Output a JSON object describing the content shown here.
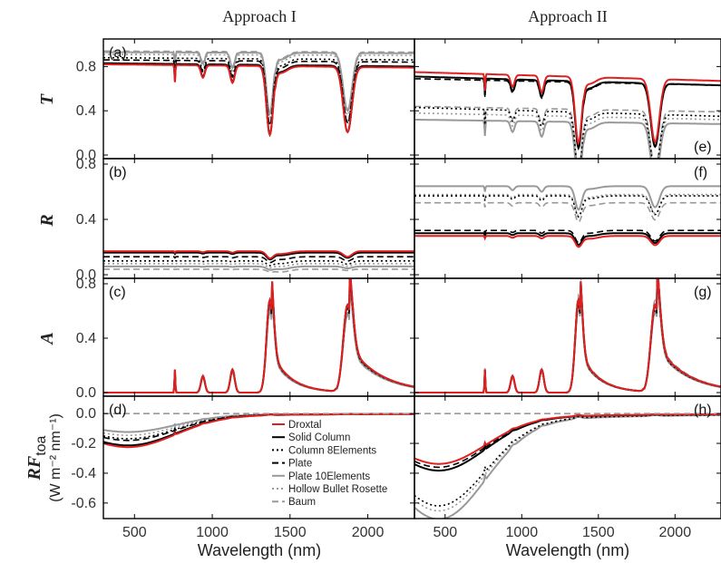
{
  "chart_data": {
    "type": "line",
    "column_titles": [
      "Approach I",
      "Approach II"
    ],
    "xlabel": "Wavelength (nm)",
    "xlim": [
      300,
      2300
    ],
    "xticks": [
      "500",
      "1000",
      "1500",
      "2000"
    ],
    "rows": [
      {
        "ylabel": "T",
        "ylim": [
          0,
          1.0
        ],
        "yticks": [
          "0.0",
          "0.4",
          "0.8"
        ]
      },
      {
        "ylabel": "R",
        "ylim": [
          0,
          0.8
        ],
        "yticks": [
          "0.0",
          "0.4",
          "0.8"
        ]
      },
      {
        "ylabel": "A",
        "ylim": [
          0,
          0.8
        ],
        "yticks": [
          "0.0",
          "0.4",
          "0.8"
        ]
      },
      {
        "ylabel": "RF",
        "ylabel_sub": "toa",
        "ylabel_units": "(W m⁻² nm⁻¹)",
        "ylim": [
          -0.68,
          0.08
        ],
        "yticks": [
          "0.0",
          "-0.2",
          "-0.4",
          "-0.6"
        ]
      }
    ],
    "legend": {
      "position": "inside panel (d), bottom-right",
      "entries": [
        {
          "name": "Droxtal",
          "color": "#e02020",
          "style": "solid"
        },
        {
          "name": "Solid Column",
          "color": "#000000",
          "style": "solid"
        },
        {
          "name": "Column 8Elements",
          "color": "#000000",
          "style": "dotted"
        },
        {
          "name": "Plate",
          "color": "#000000",
          "style": "dashed"
        },
        {
          "name": "Plate 10Elements",
          "color": "#999999",
          "style": "solid"
        },
        {
          "name": "Hollow Bullet Rosette",
          "color": "#999999",
          "style": "dotted"
        },
        {
          "name": "Baum",
          "color": "#999999",
          "style": "dashed"
        }
      ]
    },
    "panels": [
      {
        "label": "(a)",
        "row": 0,
        "col": 0,
        "kind": "T",
        "series": [
          {
            "name": "Droxtal",
            "base": 0.82,
            "bandscale": 0.62,
            "tilt": -0.03,
            "slope": 0
          },
          {
            "name": "Solid Column",
            "base": 0.83,
            "bandscale": 0.63,
            "tilt": -0.03,
            "slope": 0
          },
          {
            "name": "Column 8Elements",
            "base": 0.88,
            "bandscale": 0.6,
            "tilt": -0.02,
            "slope": 0
          },
          {
            "name": "Plate",
            "base": 0.86,
            "bandscale": 0.58,
            "tilt": -0.02,
            "slope": 0
          },
          {
            "name": "Plate 10Elements",
            "base": 0.93,
            "bandscale": 0.55,
            "tilt": -0.01,
            "slope": 0
          },
          {
            "name": "Hollow Bullet Rosette",
            "base": 0.91,
            "bandscale": 0.57,
            "tilt": -0.01,
            "slope": 0
          },
          {
            "name": "Baum",
            "base": 0.94,
            "bandscale": 0.55,
            "tilt": -0.01,
            "slope": 0
          }
        ]
      },
      {
        "label": "(e)",
        "row": 0,
        "col": 1,
        "kind": "T",
        "series": [
          {
            "name": "Droxtal",
            "base": 0.75,
            "bandscale": 0.6,
            "tilt": -0.08,
            "slope": 0
          },
          {
            "name": "Solid Column",
            "base": 0.71,
            "bandscale": 0.6,
            "tilt": -0.08,
            "slope": 0
          },
          {
            "name": "Column 8Elements",
            "base": 0.43,
            "bandscale": 0.55,
            "tilt": -0.08,
            "slope": 0
          },
          {
            "name": "Plate",
            "base": 0.69,
            "bandscale": 0.6,
            "tilt": -0.06,
            "slope": 0
          },
          {
            "name": "Plate 10Elements",
            "base": 0.32,
            "bandscale": 0.55,
            "tilt": -0.04,
            "slope": 0
          },
          {
            "name": "Hollow Bullet Rosette",
            "base": 0.38,
            "bandscale": 0.55,
            "tilt": -0.06,
            "slope": 0
          },
          {
            "name": "Baum",
            "base": 0.44,
            "bandscale": 0.55,
            "tilt": -0.05,
            "slope": 0
          }
        ]
      },
      {
        "label": "(b)",
        "row": 1,
        "col": 0,
        "kind": "R",
        "series": [
          {
            "name": "Droxtal",
            "base": 0.17,
            "bandscale": 0.5,
            "tilt": 0,
            "slope": 0
          },
          {
            "name": "Solid Column",
            "base": 0.16,
            "bandscale": 0.5,
            "tilt": 0,
            "slope": 0
          },
          {
            "name": "Column 8Elements",
            "base": 0.1,
            "bandscale": 0.5,
            "tilt": 0,
            "slope": 0
          },
          {
            "name": "Plate",
            "base": 0.13,
            "bandscale": 0.5,
            "tilt": 0,
            "slope": 0
          },
          {
            "name": "Plate 10Elements",
            "base": 0.06,
            "bandscale": 0.5,
            "tilt": 0,
            "slope": 0
          },
          {
            "name": "Hollow Bullet Rosette",
            "base": 0.08,
            "bandscale": 0.5,
            "tilt": 0,
            "slope": 0
          },
          {
            "name": "Baum",
            "base": 0.04,
            "bandscale": 0.5,
            "tilt": 0,
            "slope": 0
          }
        ]
      },
      {
        "label": "(f)",
        "row": 1,
        "col": 1,
        "kind": "R",
        "series": [
          {
            "name": "Droxtal",
            "base": 0.28,
            "bandscale": 0.4,
            "tilt": 0.02,
            "slope": 0
          },
          {
            "name": "Solid Column",
            "base": 0.3,
            "bandscale": 0.4,
            "tilt": 0.02,
            "slope": 0
          },
          {
            "name": "Column 8Elements",
            "base": 0.57,
            "bandscale": 0.4,
            "tilt": 0.02,
            "slope": 0
          },
          {
            "name": "Plate",
            "base": 0.32,
            "bandscale": 0.4,
            "tilt": 0.02,
            "slope": 0
          },
          {
            "name": "Plate 10Elements",
            "base": 0.64,
            "bandscale": 0.4,
            "tilt": 0.02,
            "slope": 0
          },
          {
            "name": "Hollow Bullet Rosette",
            "base": 0.58,
            "bandscale": 0.4,
            "tilt": 0.02,
            "slope": 0
          },
          {
            "name": "Baum",
            "base": 0.52,
            "bandscale": 0.4,
            "tilt": 0.02,
            "slope": 0
          }
        ]
      },
      {
        "label": "(c)",
        "row": 2,
        "col": 0,
        "kind": "A",
        "series": [
          {
            "name": "Droxtal",
            "base": 0,
            "bandscale": 1.0,
            "tilt": 0,
            "slope": 0
          },
          {
            "name": "Solid Column",
            "base": 0,
            "bandscale": 1.0,
            "tilt": 0,
            "slope": 0
          },
          {
            "name": "Column 8Elements",
            "base": 0,
            "bandscale": 0.95,
            "tilt": 0,
            "slope": 0
          },
          {
            "name": "Plate",
            "base": 0,
            "bandscale": 0.97,
            "tilt": 0,
            "slope": 0
          },
          {
            "name": "Plate 10Elements",
            "base": 0,
            "bandscale": 0.9,
            "tilt": 0,
            "slope": 0
          },
          {
            "name": "Hollow Bullet Rosette",
            "base": 0,
            "bandscale": 0.92,
            "tilt": 0,
            "slope": 0
          },
          {
            "name": "Baum",
            "base": 0,
            "bandscale": 0.88,
            "tilt": 0,
            "slope": 0
          }
        ]
      },
      {
        "label": "(g)",
        "row": 2,
        "col": 1,
        "kind": "A",
        "series": [
          {
            "name": "Droxtal",
            "base": 0,
            "bandscale": 1.0,
            "tilt": 0,
            "slope": 0
          },
          {
            "name": "Solid Column",
            "base": 0,
            "bandscale": 1.0,
            "tilt": 0,
            "slope": 0
          },
          {
            "name": "Column 8Elements",
            "base": 0,
            "bandscale": 0.95,
            "tilt": 0,
            "slope": 0
          },
          {
            "name": "Plate",
            "base": 0,
            "bandscale": 0.98,
            "tilt": 0,
            "slope": 0
          },
          {
            "name": "Plate 10Elements",
            "base": 0,
            "bandscale": 0.92,
            "tilt": 0,
            "slope": 0
          },
          {
            "name": "Hollow Bullet Rosette",
            "base": 0,
            "bandscale": 0.94,
            "tilt": 0,
            "slope": 0
          },
          {
            "name": "Baum",
            "base": 0,
            "bandscale": 1.05,
            "tilt": 0,
            "slope": 0
          }
        ]
      },
      {
        "label": "(d)",
        "row": 3,
        "col": 0,
        "kind": "RF",
        "series": [
          {
            "name": "Droxtal",
            "base": -0.2,
            "bandscale": 0.5,
            "tilt": 0,
            "slope": 0
          },
          {
            "name": "Solid Column",
            "base": -0.19,
            "bandscale": 0.5,
            "tilt": 0,
            "slope": 0
          },
          {
            "name": "Column 8Elements",
            "base": -0.15,
            "bandscale": 0.5,
            "tilt": 0,
            "slope": 0
          },
          {
            "name": "Plate",
            "base": -0.16,
            "bandscale": 0.5,
            "tilt": 0,
            "slope": 0
          },
          {
            "name": "Plate 10Elements",
            "base": -0.11,
            "bandscale": 0.5,
            "tilt": 0,
            "slope": 0
          },
          {
            "name": "Hollow Bullet Rosette",
            "base": -0.13,
            "bandscale": 0.5,
            "tilt": 0,
            "slope": 0
          },
          {
            "name": "Baum",
            "base": -0.0,
            "bandscale": 0,
            "tilt": 0,
            "slope": 0
          }
        ]
      },
      {
        "label": "(h)",
        "row": 3,
        "col": 1,
        "kind": "RF",
        "series": [
          {
            "name": "Droxtal",
            "base": -0.3,
            "bandscale": 0.5,
            "tilt": 0,
            "slope": 0
          },
          {
            "name": "Solid Column",
            "base": -0.34,
            "bandscale": 0.5,
            "tilt": 0,
            "slope": 0
          },
          {
            "name": "Column 8Elements",
            "base": -0.55,
            "bandscale": 0.5,
            "tilt": 0,
            "slope": 0
          },
          {
            "name": "Plate",
            "base": -0.32,
            "bandscale": 0.5,
            "tilt": 0,
            "slope": 0
          },
          {
            "name": "Plate 10Elements",
            "base": -0.63,
            "bandscale": 0.5,
            "tilt": 0,
            "slope": 0
          },
          {
            "name": "Hollow Bullet Rosette",
            "base": -0.58,
            "bandscale": 0.5,
            "tilt": 0,
            "slope": 0
          },
          {
            "name": "Baum",
            "base": -0.0,
            "bandscale": 0,
            "tilt": 0,
            "slope": 0
          }
        ]
      }
    ]
  }
}
